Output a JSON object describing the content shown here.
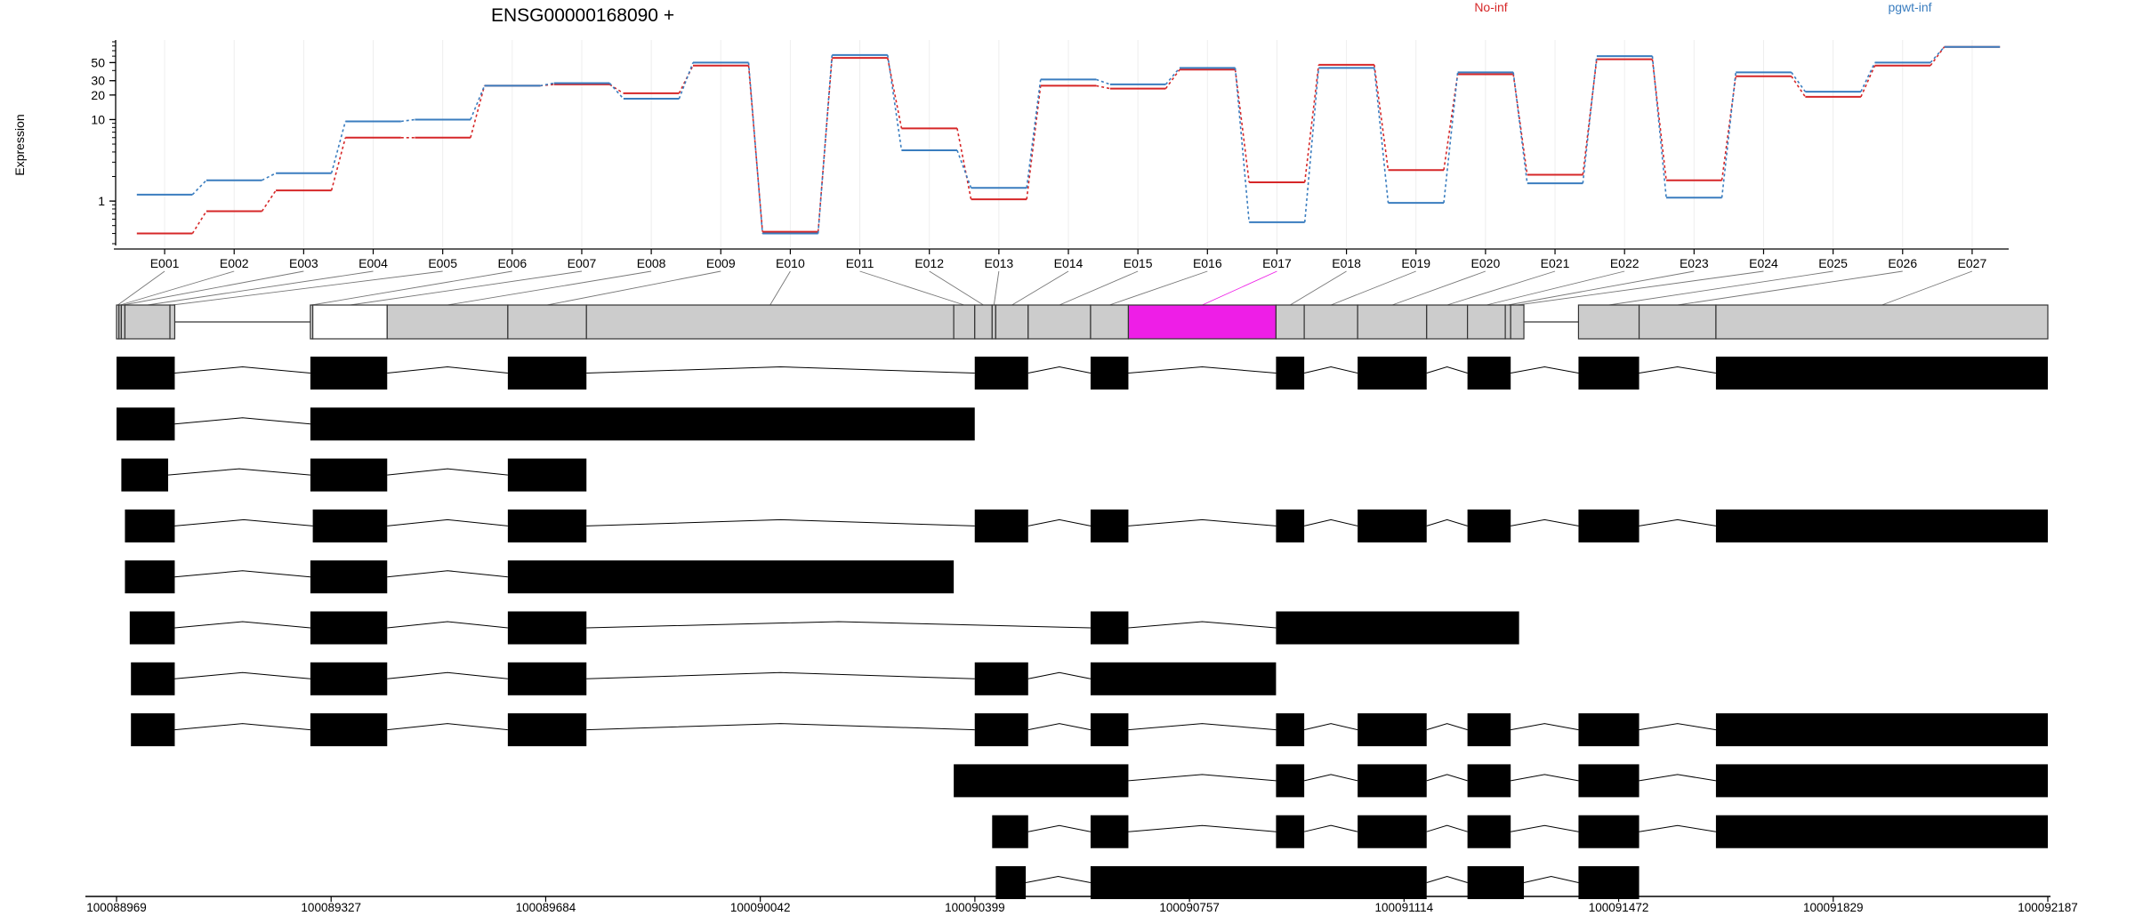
{
  "title": "ENSG00000168090 +",
  "ylabel": "Expression",
  "chart_data": {
    "type": "line",
    "title": "ENSG00000168090 +",
    "xlabel": "",
    "ylabel": "Expression",
    "y_scale": "log",
    "ylim": [
      0.3,
      90
    ],
    "y_ticks": [
      1,
      10,
      20,
      30,
      50
    ],
    "grid": "vertical",
    "categories": [
      "E001",
      "E002",
      "E003",
      "E004",
      "E005",
      "E006",
      "E007",
      "E008",
      "E009",
      "E010",
      "E011",
      "E012",
      "E013",
      "E014",
      "E015",
      "E016",
      "E017",
      "E018",
      "E019",
      "E020",
      "E021",
      "E022",
      "E023",
      "E024",
      "E025",
      "E026",
      "E027"
    ],
    "series": [
      {
        "name": "No-inf",
        "color": "#d62728",
        "values": [
          0.4,
          0.75,
          1.35,
          6.0,
          6.0,
          26,
          27,
          21,
          46,
          0.42,
          57,
          7.8,
          1.05,
          26,
          24,
          41,
          1.7,
          47,
          2.4,
          36,
          2.1,
          55,
          1.8,
          34,
          19,
          46,
          78
        ]
      },
      {
        "name": "pgwt-inf",
        "color": "#3a7dbf",
        "values": [
          1.2,
          1.8,
          2.2,
          9.5,
          10,
          26,
          28,
          18,
          50,
          0.4,
          62,
          4.2,
          1.45,
          31,
          27,
          43,
          0.55,
          43,
          0.95,
          38,
          1.65,
          60,
          1.1,
          38,
          22,
          50,
          78
        ]
      }
    ],
    "legend": [
      {
        "label": "No-inf",
        "color": "#d62728"
      },
      {
        "label": "pgwt-inf",
        "color": "#3a7dbf"
      }
    ],
    "highlight_color": "#ee1ee7",
    "genomic_axis": {
      "start": 100088969,
      "end": 100092187,
      "tick_labels": [
        "100088969",
        "100089327",
        "100089684",
        "100090042",
        "100090399",
        "100090757",
        "100091114",
        "100091472",
        "100091829",
        "100092187"
      ]
    },
    "exon_bins": [
      {
        "id": "E001",
        "start": 100088969,
        "end": 100088973
      },
      {
        "id": "E002",
        "start": 100088973,
        "end": 100088977
      },
      {
        "id": "E003",
        "start": 100088977,
        "end": 100088983
      },
      {
        "id": "E004",
        "start": 100088983,
        "end": 100089058
      },
      {
        "id": "E005",
        "start": 100089058,
        "end": 100089066
      },
      {
        "id": "E006",
        "start": 100089292,
        "end": 100089296
      },
      {
        "id": "E007",
        "start": 100089296,
        "end": 100089420
      },
      {
        "id": "E008",
        "start": 100089420,
        "end": 100089621
      },
      {
        "id": "E009",
        "start": 100089621,
        "end": 100089752
      },
      {
        "id": "E010",
        "start": 100089752,
        "end": 100090364
      },
      {
        "id": "E011",
        "start": 100090364,
        "end": 100090399
      },
      {
        "id": "E012",
        "start": 100090399,
        "end": 100090428
      },
      {
        "id": "E013",
        "start": 100090428,
        "end": 100090434
      },
      {
        "id": "E014",
        "start": 100090434,
        "end": 100090488
      },
      {
        "id": "E015",
        "start": 100090488,
        "end": 100090592
      },
      {
        "id": "E016",
        "start": 100090592,
        "end": 100090655
      },
      {
        "id": "E017",
        "start": 100090655,
        "end": 100090901
      },
      {
        "id": "E018",
        "start": 100090901,
        "end": 100090948
      },
      {
        "id": "E019",
        "start": 100090948,
        "end": 100091037
      },
      {
        "id": "E020",
        "start": 100091037,
        "end": 100091152
      },
      {
        "id": "E021",
        "start": 100091152,
        "end": 100091220
      },
      {
        "id": "E022",
        "start": 100091220,
        "end": 100091283
      },
      {
        "id": "E023",
        "start": 100091283,
        "end": 100091292
      },
      {
        "id": "E024",
        "start": 100091292,
        "end": 100091314
      },
      {
        "id": "E025",
        "start": 100091405,
        "end": 100091506
      },
      {
        "id": "E026",
        "start": 100091506,
        "end": 100091634
      },
      {
        "id": "E027",
        "start": 100091634,
        "end": 100092187
      }
    ],
    "highlighted_bin": "E017",
    "unexpressed_bin": "E007",
    "transcripts": [
      {
        "exons": [
          [
            100088969,
            100089066
          ],
          [
            100089292,
            100089420
          ],
          [
            100089621,
            100089752
          ],
          [
            100090399,
            100090488
          ],
          [
            100090592,
            100090655
          ],
          [
            100090901,
            100090948
          ],
          [
            100091037,
            100091152
          ],
          [
            100091220,
            100091292
          ],
          [
            100091405,
            100091506
          ],
          [
            100091634,
            100092187
          ]
        ]
      },
      {
        "exons": [
          [
            100088969,
            100089066
          ],
          [
            100089292,
            100090399
          ]
        ]
      },
      {
        "exons": [
          [
            100088977,
            100089055
          ],
          [
            100089292,
            100089420
          ],
          [
            100089621,
            100089752
          ]
        ]
      },
      {
        "exons": [
          [
            100088983,
            100089066
          ],
          [
            100089296,
            100089420
          ],
          [
            100089621,
            100089752
          ],
          [
            100090399,
            100090488
          ],
          [
            100090592,
            100090655
          ],
          [
            100090901,
            100090948
          ],
          [
            100091037,
            100091152
          ],
          [
            100091220,
            100091292
          ],
          [
            100091405,
            100091506
          ],
          [
            100091634,
            100092187
          ]
        ]
      },
      {
        "exons": [
          [
            100088983,
            100089066
          ],
          [
            100089292,
            100089420
          ],
          [
            100089621,
            100090364
          ]
        ]
      },
      {
        "exons": [
          [
            100088991,
            100089066
          ],
          [
            100089292,
            100089420
          ],
          [
            100089621,
            100089752
          ],
          [
            100090592,
            100090655
          ],
          [
            100090901,
            100091306
          ]
        ]
      },
      {
        "exons": [
          [
            100088993,
            100089066
          ],
          [
            100089292,
            100089420
          ],
          [
            100089621,
            100089752
          ],
          [
            100090399,
            100090488
          ],
          [
            100090592,
            100090901
          ]
        ]
      },
      {
        "exons": [
          [
            100088993,
            100089066
          ],
          [
            100089292,
            100089420
          ],
          [
            100089621,
            100089752
          ],
          [
            100090399,
            100090488
          ],
          [
            100090592,
            100090655
          ],
          [
            100090901,
            100090948
          ],
          [
            100091037,
            100091152
          ],
          [
            100091220,
            100091292
          ],
          [
            100091405,
            100091506
          ],
          [
            100091634,
            100092187
          ]
        ]
      },
      {
        "exons": [
          [
            100090364,
            100090655
          ],
          [
            100090901,
            100090948
          ],
          [
            100091037,
            100091152
          ],
          [
            100091220,
            100091292
          ],
          [
            100091405,
            100091506
          ],
          [
            100091634,
            100092187
          ]
        ]
      },
      {
        "exons": [
          [
            100090428,
            100090488
          ],
          [
            100090592,
            100090655
          ],
          [
            100090901,
            100090948
          ],
          [
            100091037,
            100091152
          ],
          [
            100091220,
            100091292
          ],
          [
            100091405,
            100091506
          ],
          [
            100091634,
            100092187
          ]
        ]
      },
      {
        "exons": [
          [
            100090434,
            100090484
          ],
          [
            100090592,
            100091152
          ],
          [
            100091220,
            100091314
          ],
          [
            100091405,
            100091506
          ]
        ]
      }
    ]
  }
}
